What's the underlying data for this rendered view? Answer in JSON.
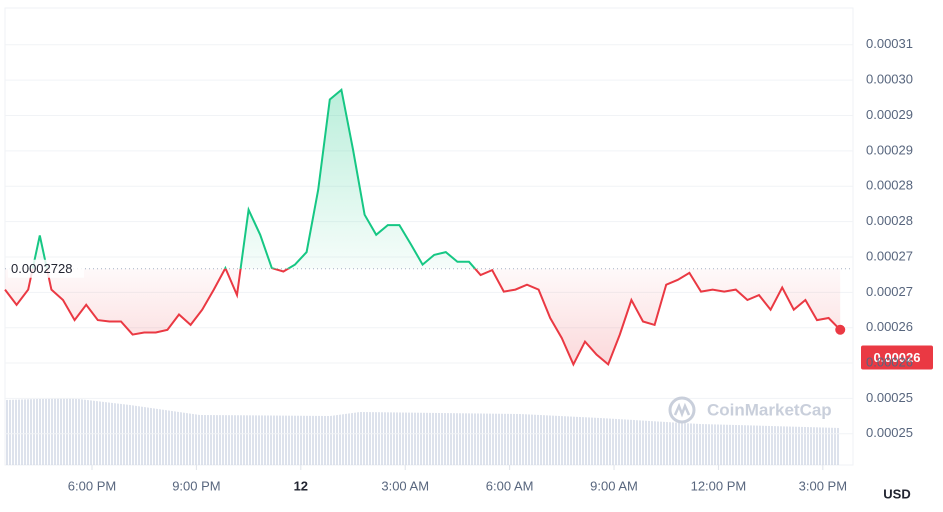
{
  "chart_data": {
    "type": "line",
    "values": [
      0.0002698,
      0.0002676,
      0.0002698,
      0.0002776,
      0.0002698,
      0.0002683,
      0.0002654,
      0.0002676,
      0.0002654,
      0.0002652,
      0.0002652,
      0.0002633,
      0.0002636,
      0.0002636,
      0.000264,
      0.0002662,
      0.0002647,
      0.0002669,
      0.0002698,
      0.0002729,
      0.000269,
      0.0002813,
      0.0002777,
      0.0002729,
      0.0002724,
      0.0002734,
      0.0002752,
      0.0002842,
      0.0002972,
      0.0002986,
      0.00029,
      0.0002806,
      0.0002777,
      0.0002791,
      0.0002791,
      0.0002763,
      0.0002734,
      0.0002748,
      0.0002752,
      0.0002738,
      0.0002738,
      0.0002719,
      0.0002726,
      0.0002695,
      0.0002698,
      0.0002705,
      0.0002698,
      0.0002657,
      0.0002628,
      0.000259,
      0.0002623,
      0.0002604,
      0.000259,
      0.0002633,
      0.0002683,
      0.0002652,
      0.0002647,
      0.0002705,
      0.0002712,
      0.0002722,
      0.0002695,
      0.0002698,
      0.0002695,
      0.0002698,
      0.0002683,
      0.000269,
      0.0002669,
      0.0002701,
      0.0002669,
      0.0002683,
      0.0002654,
      0.0002657,
      0.000264
    ],
    "up_color": "#16c784",
    "down_color": "#ea3943",
    "baseline": 0.0002728,
    "price_label": 0.00026,
    "xlim": [
      0,
      73.1
    ],
    "xticks": [
      {
        "value": 7.5,
        "label": "6:00 PM"
      },
      {
        "value": 16.5,
        "label": "9:00 PM"
      },
      {
        "value": 25.5,
        "label": "12"
      },
      {
        "value": 34.5,
        "label": "3:00 AM"
      },
      {
        "value": 43.5,
        "label": "6:00 AM"
      },
      {
        "value": 52.5,
        "label": "9:00 AM"
      },
      {
        "value": 61.5,
        "label": "12:00 PM"
      },
      {
        "value": 70.5,
        "label": "3:00 PM"
      }
    ],
    "ylim": [
      0.0002445,
      0.0003104
    ],
    "yticks": [
      {
        "value": 0.000249,
        "label": "0.00025"
      },
      {
        "value": 0.0002541,
        "label": "0.00025"
      },
      {
        "value": 0.0002592,
        "label": "0.00026"
      },
      {
        "value": 0.0002643,
        "label": "0.00026"
      },
      {
        "value": 0.0002694,
        "label": "0.00027"
      },
      {
        "value": 0.0002745,
        "label": "0.00027"
      },
      {
        "value": 0.0002796,
        "label": "0.00028"
      },
      {
        "value": 0.0002847,
        "label": "0.00028"
      },
      {
        "value": 0.0002898,
        "label": "0.00029"
      },
      {
        "value": 0.0002949,
        "label": "0.00029"
      },
      {
        "value": 0.0003,
        "label": "0.00030"
      },
      {
        "value": 0.0003051,
        "label": "0.00031"
      }
    ],
    "grid": true,
    "currency": "USD",
    "watermark": "CoinMarketCap"
  }
}
